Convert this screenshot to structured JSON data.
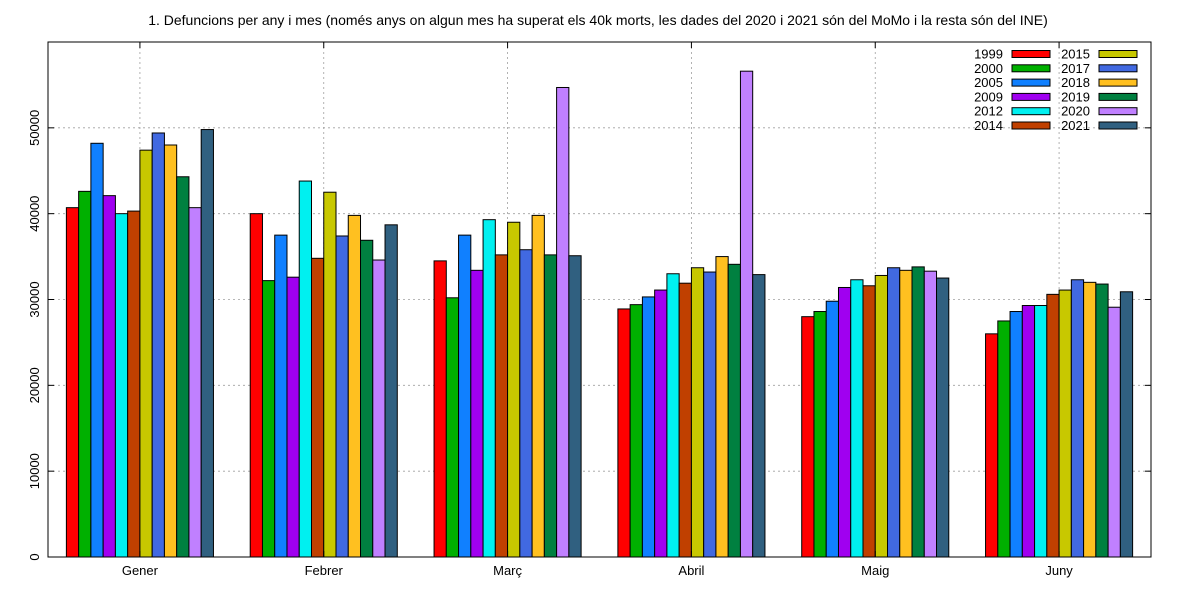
{
  "chart_data": {
    "type": "bar",
    "title": "1. Defuncions per any i mes (només anys on algun mes ha superat els 40k morts, les dades del 2020 i 2021 són del MoMo i la resta són del INE)",
    "xlabel": "",
    "ylabel": "",
    "ylim": [
      0,
      60000
    ],
    "yticks": [
      0,
      10000,
      20000,
      30000,
      40000,
      50000
    ],
    "grid": true,
    "legend_position": "top-right",
    "categories": [
      "Gener",
      "Febrer",
      "Març",
      "Abril",
      "Maig",
      "Juny"
    ],
    "series": [
      {
        "name": "1999",
        "color": "#ff0000",
        "values": [
          40700,
          40000,
          34500,
          28900,
          28000,
          26000
        ]
      },
      {
        "name": "2000",
        "color": "#00b000",
        "values": [
          42600,
          32200,
          30200,
          29400,
          28600,
          27500
        ]
      },
      {
        "name": "2005",
        "color": "#1080ff",
        "values": [
          48200,
          37500,
          37500,
          30300,
          29800,
          28600
        ]
      },
      {
        "name": "2009",
        "color": "#a000f0",
        "values": [
          42100,
          32600,
          33400,
          31100,
          31400,
          29300
        ]
      },
      {
        "name": "2012",
        "color": "#00f0f0",
        "values": [
          40000,
          43800,
          39300,
          33000,
          32300,
          29300
        ]
      },
      {
        "name": "2014",
        "color": "#c04000",
        "values": [
          40300,
          34800,
          35200,
          31900,
          31600,
          30600
        ]
      },
      {
        "name": "2015",
        "color": "#c8c800",
        "values": [
          47400,
          42500,
          39000,
          33700,
          32800,
          31100
        ]
      },
      {
        "name": "2017",
        "color": "#4169e1",
        "values": [
          49400,
          37400,
          35800,
          33200,
          33700,
          32300
        ]
      },
      {
        "name": "2018",
        "color": "#ffc020",
        "values": [
          48000,
          39800,
          39800,
          35000,
          33400,
          32000
        ]
      },
      {
        "name": "2019",
        "color": "#008040",
        "values": [
          44300,
          36900,
          35200,
          34100,
          33800,
          31800
        ]
      },
      {
        "name": "2020",
        "color": "#c080ff",
        "values": [
          40700,
          34600,
          54700,
          56600,
          33300,
          29100
        ]
      },
      {
        "name": "2021",
        "color": "#306080",
        "values": [
          49800,
          38700,
          35100,
          32900,
          32500,
          30900
        ]
      }
    ]
  }
}
